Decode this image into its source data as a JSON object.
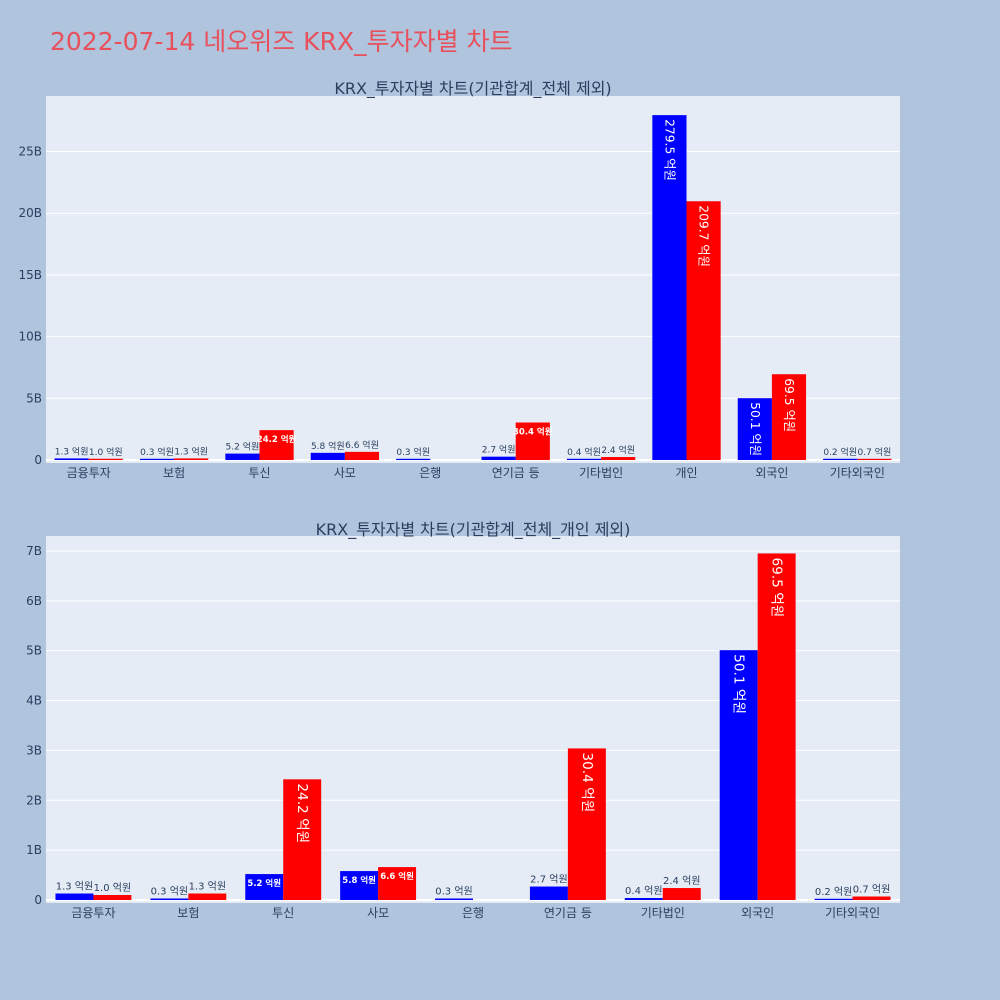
{
  "page_title": "2022-07-14 네오위즈 KRX_투자자별 차트",
  "colors": {
    "buy": "#0000ff",
    "sell": "#ff0000",
    "plot_bg": "#e5ecf6",
    "page_bg": "#b0c4de",
    "title": "#e8505b"
  },
  "chart_data": [
    {
      "type": "bar",
      "title": "KRX_투자자별 차트(기관합계_전체 제외)",
      "categories": [
        "금융투자",
        "보험",
        "투신",
        "사모",
        "은행",
        "연기금 등",
        "기타법인",
        "개인",
        "외국인",
        "기타외국인"
      ],
      "series": [
        {
          "name": "buy",
          "values": [
            0.13,
            0.03,
            0.52,
            0.58,
            0.03,
            0.27,
            0.04,
            27.95,
            5.01,
            0.02
          ],
          "labels": [
            "1.3 억원",
            "0.3 억원",
            "5.2 억원",
            "5.8 억원",
            "0.3 억원",
            "2.7 억원",
            "0.4 억원",
            "279.5 억원",
            "50.1 억원",
            "0.2 억원"
          ]
        },
        {
          "name": "sell",
          "values": [
            0.1,
            0.13,
            2.42,
            0.66,
            0.0,
            3.04,
            0.24,
            20.97,
            6.95,
            0.07
          ],
          "labels": [
            "1.0 억원",
            "1.3 억원",
            "24.2 억원",
            "6.6 억원",
            "",
            "30.4 억원",
            "2.4 억원",
            "209.7 억원",
            "69.5 억원",
            "0.7 억원"
          ]
        }
      ],
      "yticks": [
        0,
        5,
        10,
        15,
        20,
        25
      ],
      "ytick_labels": [
        "0",
        "5B",
        "10B",
        "15B",
        "20B",
        "25B"
      ],
      "ylim": [
        0,
        29.5
      ],
      "xlabel": "",
      "ylabel": ""
    },
    {
      "type": "bar",
      "title": "KRX_투자자별 차트(기관합계_전체_개인 제외)",
      "categories": [
        "금융투자",
        "보험",
        "투신",
        "사모",
        "은행",
        "연기금 등",
        "기타법인",
        "외국인",
        "기타외국인"
      ],
      "series": [
        {
          "name": "buy",
          "values": [
            0.13,
            0.03,
            0.52,
            0.58,
            0.03,
            0.27,
            0.04,
            5.01,
            0.02
          ],
          "labels": [
            "1.3 억원",
            "0.3 억원",
            "5.2 억원",
            "5.8 억원",
            "0.3 억원",
            "2.7 억원",
            "0.4 억원",
            "50.1 억원",
            "0.2 억원"
          ]
        },
        {
          "name": "sell",
          "values": [
            0.1,
            0.13,
            2.42,
            0.66,
            0.0,
            3.04,
            0.24,
            6.95,
            0.07
          ],
          "labels": [
            "1.0 억원",
            "1.3 억원",
            "24.2 억원",
            "6.6 억원",
            "",
            "30.4 억원",
            "2.4 억원",
            "69.5 억원",
            "0.7 억원"
          ]
        }
      ],
      "yticks": [
        0,
        1,
        2,
        3,
        4,
        5,
        6,
        7
      ],
      "ytick_labels": [
        "0",
        "1B",
        "2B",
        "3B",
        "4B",
        "5B",
        "6B",
        "7B"
      ],
      "ylim": [
        0,
        7.3
      ],
      "xlabel": "",
      "ylabel": ""
    }
  ]
}
